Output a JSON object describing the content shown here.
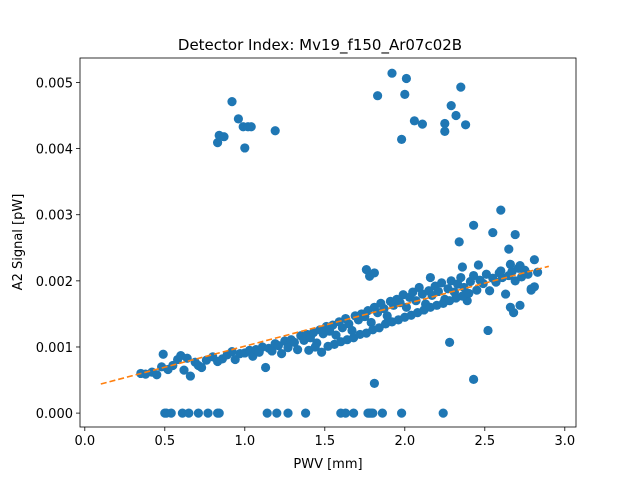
{
  "chart_data": {
    "type": "scatter",
    "title": "Detector Index: Mv19_f150_Ar07c02B",
    "xlabel": "PWV [mm]",
    "ylabel": "A2 Signal [pW]",
    "xlim": [
      -0.03,
      3.07
    ],
    "ylim": [
      -0.00021,
      0.00537
    ],
    "xticks": [
      0.0,
      0.5,
      1.0,
      1.5,
      2.0,
      2.5,
      3.0
    ],
    "xtick_labels": [
      "0.0",
      "0.5",
      "1.0",
      "1.5",
      "2.0",
      "2.5",
      "3.0"
    ],
    "yticks": [
      0.0,
      0.001,
      0.002,
      0.003,
      0.004,
      0.005
    ],
    "ytick_labels": [
      "0.000",
      "0.001",
      "0.002",
      "0.003",
      "0.004",
      "0.005"
    ],
    "colors": {
      "points": "#1f77b4",
      "fit": "#ff7f0e",
      "axes": "#000000"
    },
    "series": [
      {
        "name": "data",
        "kind": "points",
        "points": [
          [
            0.83,
            0.00409
          ],
          [
            0.84,
            0.0042
          ],
          [
            0.87,
            0.00418
          ],
          [
            0.92,
            0.00471
          ],
          [
            0.96,
            0.00445
          ],
          [
            0.99,
            0.00433
          ],
          [
            1.0,
            0.00401
          ],
          [
            1.02,
            0.00433
          ],
          [
            1.04,
            0.00433
          ],
          [
            1.19,
            0.00427
          ],
          [
            1.83,
            0.0048
          ],
          [
            1.92,
            0.00514
          ],
          [
            1.98,
            0.00414
          ],
          [
            2.0,
            0.00482
          ],
          [
            2.01,
            0.00506
          ],
          [
            2.06,
            0.00442
          ],
          [
            2.11,
            0.00437
          ],
          [
            2.25,
            0.00426
          ],
          [
            2.25,
            0.00438
          ],
          [
            2.29,
            0.00465
          ],
          [
            2.32,
            0.0045
          ],
          [
            2.35,
            0.00493
          ],
          [
            2.38,
            0.00436
          ],
          [
            2.6,
            0.00307
          ],
          [
            2.55,
            0.00273
          ],
          [
            2.65,
            0.00248
          ],
          [
            2.43,
            0.00284
          ],
          [
            2.69,
            0.0027
          ],
          [
            2.34,
            0.00259
          ],
          [
            2.28,
            0.00107
          ],
          [
            2.43,
            0.00051
          ],
          [
            1.81,
            0.00045
          ],
          [
            2.52,
            0.00125
          ],
          [
            0.5,
            0.0
          ],
          [
            0.51,
            0.0
          ],
          [
            0.54,
            0.0
          ],
          [
            0.61,
            0.0
          ],
          [
            0.65,
            0.0
          ],
          [
            0.71,
            0.0
          ],
          [
            0.77,
            0.0
          ],
          [
            0.83,
            0.0
          ],
          [
            0.84,
            0.0
          ],
          [
            1.14,
            0.0
          ],
          [
            1.2,
            0.0
          ],
          [
            1.27,
            0.0
          ],
          [
            1.38,
            0.0
          ],
          [
            1.6,
            0.0
          ],
          [
            1.63,
            0.0
          ],
          [
            1.68,
            0.0
          ],
          [
            1.77,
            0.0
          ],
          [
            1.78,
            0.0
          ],
          [
            1.79,
            0.0
          ],
          [
            1.8,
            0.0
          ],
          [
            1.86,
            0.0
          ],
          [
            1.98,
            0.0
          ],
          [
            2.24,
            0.0
          ],
          [
            0.35,
            0.0006
          ],
          [
            0.38,
            0.00059
          ],
          [
            0.42,
            0.00062
          ],
          [
            0.45,
            0.00058
          ],
          [
            0.48,
            0.0007
          ],
          [
            0.49,
            0.00089
          ],
          [
            0.52,
            0.00066
          ],
          [
            0.55,
            0.00072
          ],
          [
            0.58,
            0.00081
          ],
          [
            0.6,
            0.00087
          ],
          [
            0.62,
            0.00065
          ],
          [
            0.64,
            0.00083
          ],
          [
            0.66,
            0.00056
          ],
          [
            0.69,
            0.00077
          ],
          [
            0.71,
            0.00072
          ],
          [
            0.73,
            0.00069
          ],
          [
            0.76,
            0.0008
          ],
          [
            0.8,
            0.00085
          ],
          [
            0.83,
            0.00078
          ],
          [
            0.86,
            0.00082
          ],
          [
            0.89,
            0.00088
          ],
          [
            0.92,
            0.00093
          ],
          [
            0.94,
            0.00081
          ],
          [
            0.97,
            0.0009
          ],
          [
            1.0,
            0.00091
          ],
          [
            1.03,
            0.00095
          ],
          [
            1.05,
            0.00086
          ],
          [
            1.07,
            0.00096
          ],
          [
            1.09,
            0.00092
          ],
          [
            1.11,
            0.001
          ],
          [
            1.13,
            0.00069
          ],
          [
            1.15,
            0.00098
          ],
          [
            1.17,
            0.00094
          ],
          [
            1.19,
            0.00105
          ],
          [
            1.21,
            0.00102
          ],
          [
            1.23,
            0.0009
          ],
          [
            1.25,
            0.00109
          ],
          [
            1.27,
            0.00099
          ],
          [
            1.29,
            0.00111
          ],
          [
            1.31,
            0.00107
          ],
          [
            1.33,
            0.00096
          ],
          [
            1.35,
            0.00117
          ],
          [
            1.37,
            0.0011
          ],
          [
            1.39,
            0.00119
          ],
          [
            1.41,
            0.00114
          ],
          [
            1.43,
            0.00122
          ],
          [
            1.45,
            0.00106
          ],
          [
            1.47,
            0.00126
          ],
          [
            1.49,
            0.0012
          ],
          [
            1.51,
            0.00131
          ],
          [
            1.53,
            0.00124
          ],
          [
            1.55,
            0.00133
          ],
          [
            1.57,
            0.00118
          ],
          [
            1.59,
            0.00138
          ],
          [
            1.61,
            0.00129
          ],
          [
            1.63,
            0.00143
          ],
          [
            1.65,
            0.00135
          ],
          [
            1.67,
            0.00125
          ],
          [
            1.69,
            0.00147
          ],
          [
            1.71,
            0.00141
          ],
          [
            1.73,
            0.0015
          ],
          [
            1.75,
            0.00146
          ],
          [
            1.77,
            0.00155
          ],
          [
            1.79,
            0.00137
          ],
          [
            1.81,
            0.0016
          ],
          [
            1.83,
            0.00152
          ],
          [
            1.85,
            0.00166
          ],
          [
            1.87,
            0.00158
          ],
          [
            1.89,
            0.00147
          ],
          [
            1.91,
            0.00169
          ],
          [
            1.93,
            0.00163
          ],
          [
            1.95,
            0.00172
          ],
          [
            1.97,
            0.00167
          ],
          [
            1.99,
            0.00179
          ],
          [
            2.01,
            0.0016
          ],
          [
            2.03,
            0.00175
          ],
          [
            2.05,
            0.00183
          ],
          [
            2.07,
            0.0017
          ],
          [
            2.09,
            0.0019
          ],
          [
            2.11,
            0.0018
          ],
          [
            2.13,
            0.00165
          ],
          [
            2.15,
            0.00185
          ],
          [
            2.17,
            0.00178
          ],
          [
            2.19,
            0.00192
          ],
          [
            2.21,
            0.00184
          ],
          [
            2.23,
            0.00197
          ],
          [
            2.25,
            0.00172
          ],
          [
            2.27,
            0.00188
          ],
          [
            2.29,
            0.002
          ],
          [
            2.31,
            0.00183
          ],
          [
            2.33,
            0.00195
          ],
          [
            2.35,
            0.00205
          ],
          [
            2.37,
            0.0019
          ],
          [
            2.39,
            0.0017
          ],
          [
            2.41,
            0.00199
          ],
          [
            2.43,
            0.00208
          ],
          [
            2.45,
            0.00186
          ],
          [
            2.47,
            0.00201
          ],
          [
            2.49,
            0.00196
          ],
          [
            2.51,
            0.0021
          ],
          [
            2.53,
            0.00185
          ],
          [
            2.55,
            0.00204
          ],
          [
            2.57,
            0.00198
          ],
          [
            2.59,
            0.00212
          ],
          [
            2.61,
            0.00205
          ],
          [
            2.63,
            0.0018
          ],
          [
            2.65,
            0.00208
          ],
          [
            2.67,
            0.00214
          ],
          [
            2.69,
            0.002
          ],
          [
            2.71,
            0.00219
          ],
          [
            2.73,
            0.00206
          ],
          [
            2.75,
            0.00216
          ],
          [
            2.77,
            0.0021
          ],
          [
            2.79,
            0.00188
          ],
          [
            2.81,
            0.00232
          ],
          [
            2.83,
            0.00213
          ],
          [
            1.4,
            0.00095
          ],
          [
            1.44,
            0.001
          ],
          [
            1.48,
            0.00092
          ],
          [
            1.52,
            0.00101
          ],
          [
            1.56,
            0.00104
          ],
          [
            1.6,
            0.00108
          ],
          [
            1.64,
            0.00111
          ],
          [
            1.68,
            0.00114
          ],
          [
            1.72,
            0.00119
          ],
          [
            1.76,
            0.00121
          ],
          [
            1.8,
            0.00126
          ],
          [
            1.84,
            0.00129
          ],
          [
            1.88,
            0.00135
          ],
          [
            1.92,
            0.00138
          ],
          [
            1.96,
            0.00141
          ],
          [
            2.0,
            0.00145
          ],
          [
            2.04,
            0.00148
          ],
          [
            2.08,
            0.00152
          ],
          [
            2.12,
            0.00156
          ],
          [
            2.16,
            0.0016
          ],
          [
            2.2,
            0.00163
          ],
          [
            2.24,
            0.00166
          ],
          [
            2.28,
            0.0017
          ],
          [
            2.32,
            0.00174
          ],
          [
            2.36,
            0.00177
          ],
          [
            2.4,
            0.00181
          ],
          [
            1.76,
            0.00217
          ],
          [
            1.78,
            0.00207
          ],
          [
            1.81,
            0.00212
          ],
          [
            2.16,
            0.00205
          ],
          [
            2.36,
            0.00221
          ],
          [
            2.46,
            0.00224
          ],
          [
            2.6,
            0.00215
          ],
          [
            2.66,
            0.00225
          ],
          [
            2.72,
            0.00223
          ],
          [
            2.68,
            0.00152
          ],
          [
            2.72,
            0.00163
          ],
          [
            2.66,
            0.0016
          ],
          [
            2.79,
            0.00186
          ],
          [
            2.81,
            0.00191
          ]
        ]
      },
      {
        "name": "linear fit",
        "kind": "dashed-line",
        "x": [
          0.1,
          2.9
        ],
        "y": [
          0.00044,
          0.00222
        ]
      }
    ]
  }
}
